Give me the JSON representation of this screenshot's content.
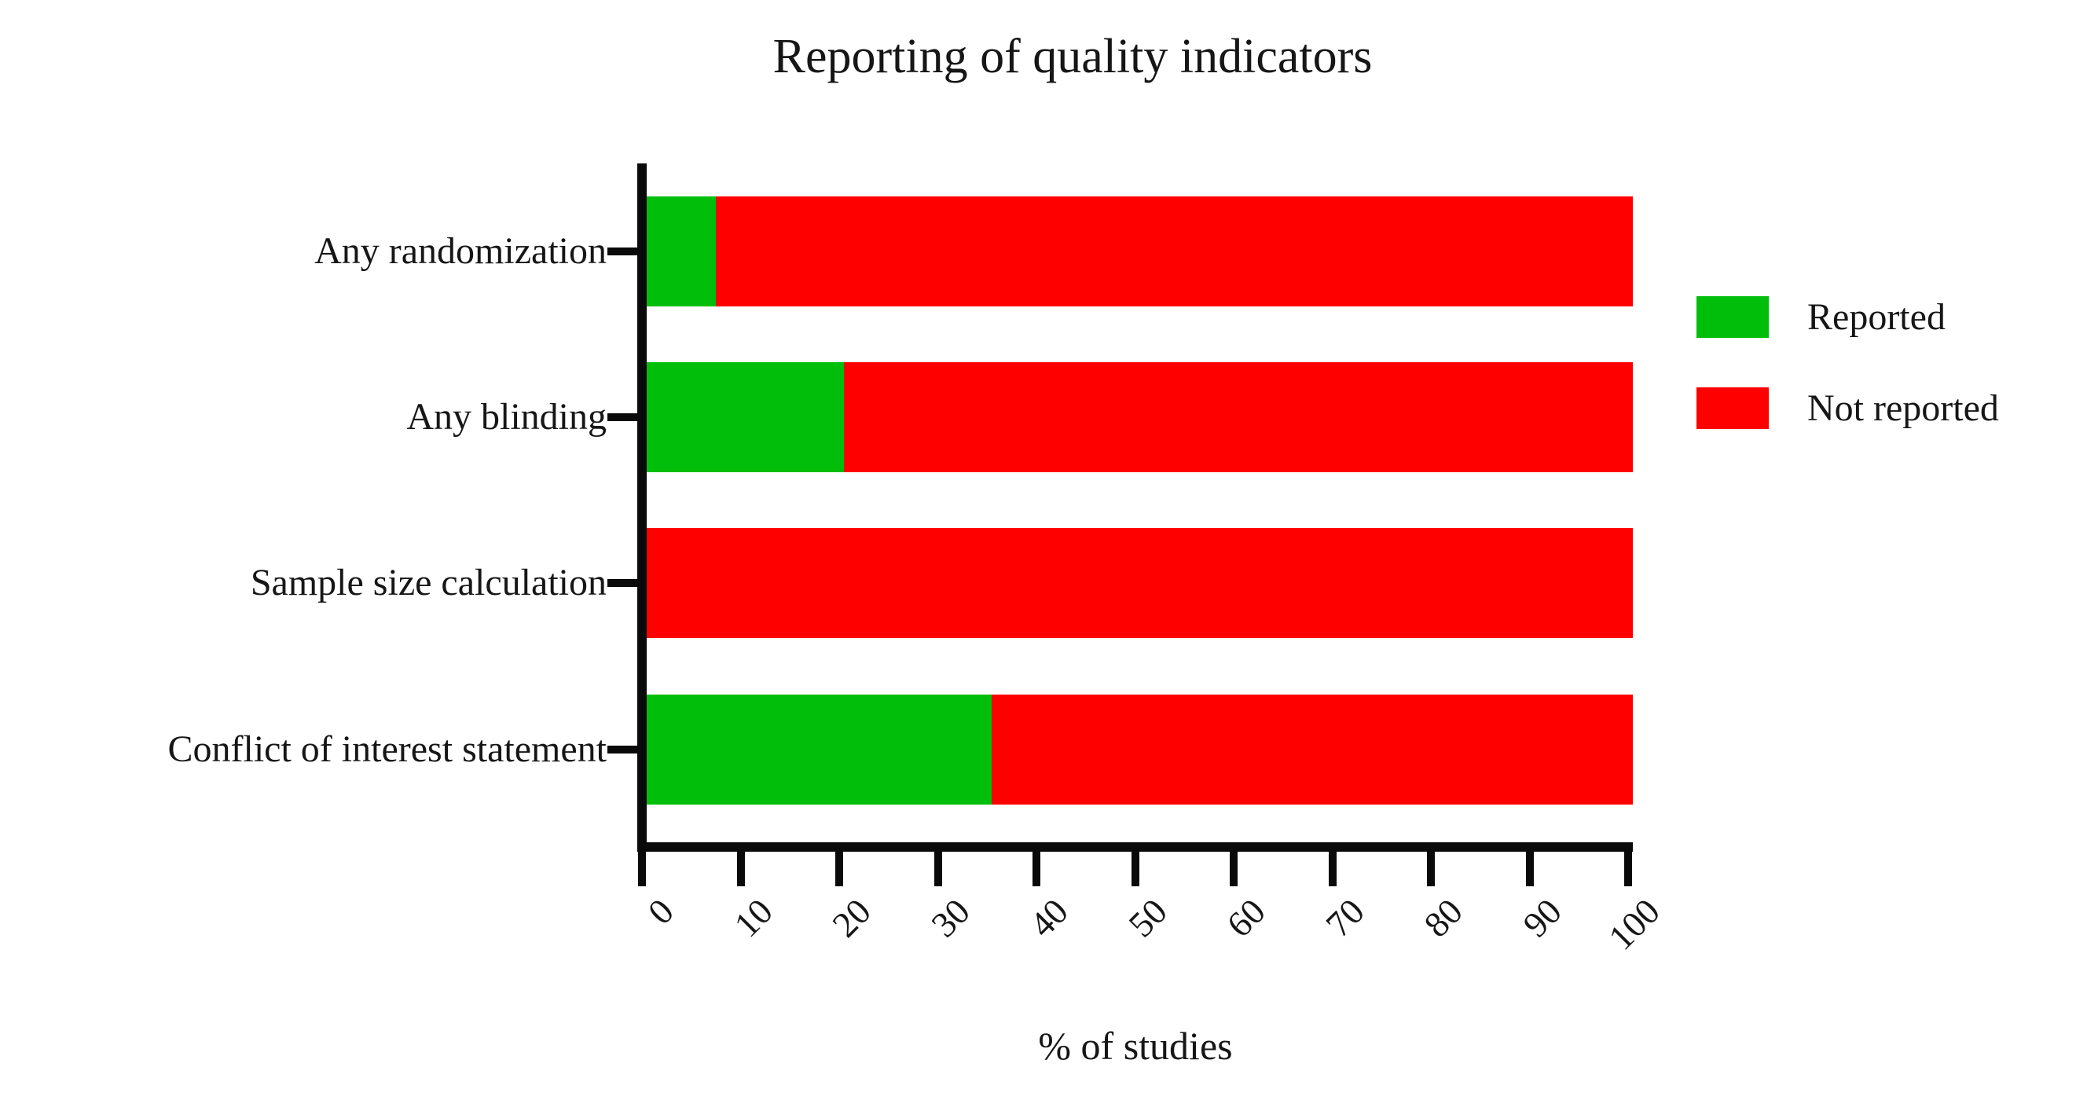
{
  "chart_data": {
    "type": "bar",
    "orientation": "horizontal",
    "stacked": true,
    "title": "Reporting of quality indicators",
    "xlabel": "% of studies",
    "xlim": [
      0,
      100
    ],
    "xticks": [
      0,
      10,
      20,
      30,
      40,
      50,
      60,
      70,
      80,
      90,
      100
    ],
    "grid": false,
    "legend_position": "right",
    "categories": [
      "Any randomization",
      "Any blinding",
      "Sample size calculation",
      "Conflict of interest statement"
    ],
    "series": [
      {
        "name": "Reported",
        "color": "#00BE0A",
        "values": [
          7,
          20,
          0,
          35
        ]
      },
      {
        "name": "Not reported",
        "color": "#FF0000",
        "values": [
          93,
          80,
          100,
          65
        ]
      }
    ]
  }
}
